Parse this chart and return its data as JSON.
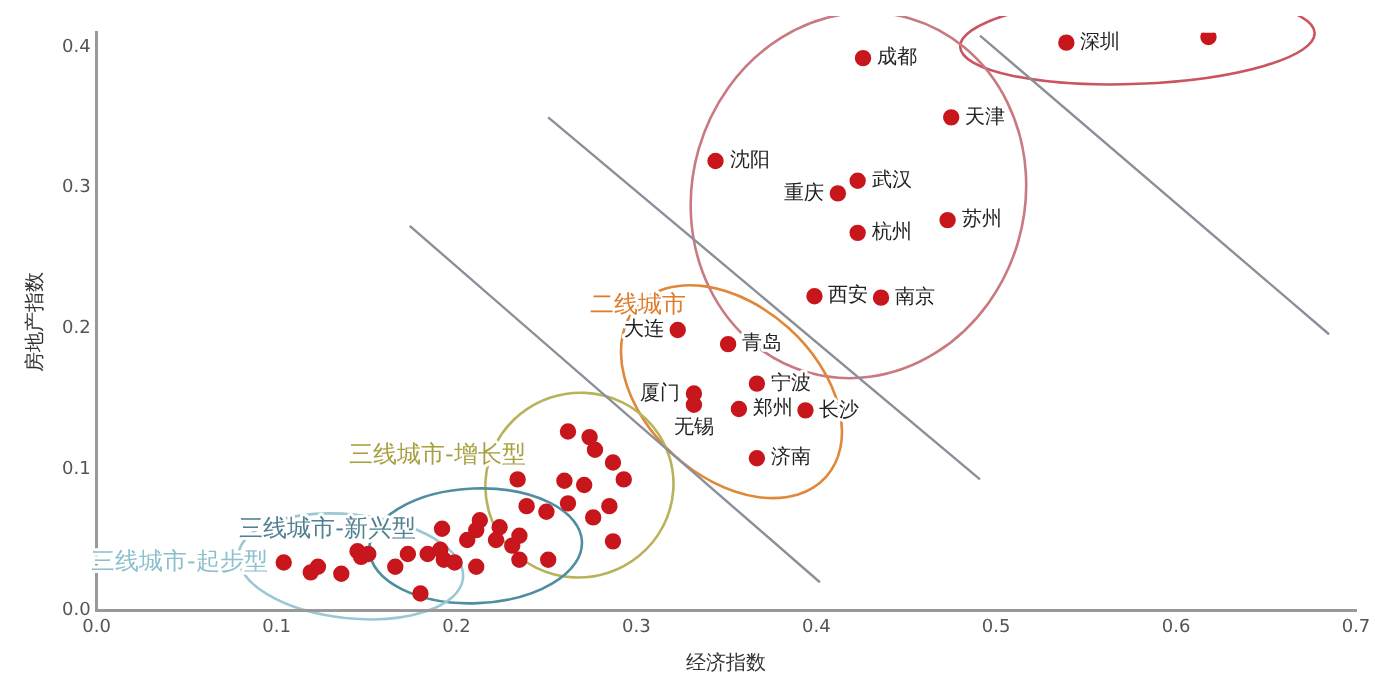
{
  "chart_data": {
    "type": "scatter",
    "xlabel": "经济指数",
    "ylabel": "房地产指数",
    "marker": "circle",
    "xlim": [
      0,
      0.7
    ],
    "xticks": [
      {
        "value": 0,
        "label": "0.0"
      },
      {
        "value": 0.1,
        "label": "0.1"
      },
      {
        "value": 0.2,
        "label": "0.2"
      },
      {
        "value": 0.3,
        "label": "0.3"
      },
      {
        "value": 0.4,
        "label": "0.4"
      },
      {
        "value": 0.5,
        "label": "0.5"
      },
      {
        "value": 0.6,
        "label": "0.6"
      },
      {
        "value": 0.7,
        "label": "0.7"
      }
    ],
    "ylim": [
      0,
      0.41
    ],
    "yticks": [
      {
        "value": 0,
        "label": "0.0"
      },
      {
        "value": 0.1,
        "label": "0.1"
      },
      {
        "value": 0.2,
        "label": "0.2"
      },
      {
        "value": 0.3,
        "label": "0.3"
      },
      {
        "value": 0.4,
        "label": "0.4"
      }
    ],
    "series": [
      {
        "color": "#c8161d",
        "x": [
          0.539,
          0.618
        ],
        "values": [
          0.403,
          0.407
        ]
      },
      {
        "color": "#c8161d",
        "x": [
          0.426,
          0.475,
          0.344,
          0.423,
          0.412,
          0.473,
          0.423,
          0.399,
          0.436
        ],
        "values": [
          0.392,
          0.35,
          0.319,
          0.305,
          0.296,
          0.277,
          0.268,
          0.223,
          0.222
        ]
      },
      {
        "name": "二线城市",
        "color": "#c8161d",
        "x": [
          0.323,
          0.351,
          0.367,
          0.332,
          0.332,
          0.357,
          0.394,
          0.367
        ],
        "values": [
          0.199,
          0.189,
          0.161,
          0.154,
          0.146,
          0.143,
          0.142,
          0.108
        ]
      },
      {
        "name": "三线城市-增长型",
        "color": "#c8161d",
        "x": [
          0.262,
          0.274,
          0.277,
          0.287,
          0.293,
          0.234,
          0.26,
          0.271,
          0.239,
          0.25,
          0.262,
          0.285,
          0.276,
          0.287
        ],
        "values": [
          0.127,
          0.123,
          0.114,
          0.105,
          0.093,
          0.093,
          0.092,
          0.089,
          0.074,
          0.07,
          0.076,
          0.074,
          0.066,
          0.049
        ]
      },
      {
        "name": "三线城市-新兴型",
        "color": "#c8161d",
        "x": [
          0.192,
          0.213,
          0.211,
          0.206,
          0.224,
          0.222,
          0.235,
          0.231,
          0.235,
          0.251,
          0.191,
          0.184,
          0.193,
          0.199,
          0.211,
          0.173
        ],
        "values": [
          0.058,
          0.064,
          0.057,
          0.05,
          0.059,
          0.05,
          0.053,
          0.046,
          0.036,
          0.036,
          0.043,
          0.04,
          0.036,
          0.034,
          0.031,
          0.04
        ]
      },
      {
        "name": "三线城市-起步型",
        "color": "#c8161d",
        "x": [
          0.104,
          0.119,
          0.123,
          0.136,
          0.145,
          0.147,
          0.151,
          0.166,
          0.18
        ],
        "values": [
          0.034,
          0.027,
          0.031,
          0.026,
          0.042,
          0.038,
          0.04,
          0.031,
          0.012
        ]
      },
      {
        "type": "line",
        "marker": "none",
        "color": "#8a8f99",
        "x": [
          0.174,
          0.402
        ],
        "values": [
          0.273,
          0.02
        ]
      },
      {
        "type": "line",
        "marker": "none",
        "color": "#8a8f99",
        "x": [
          0.251,
          0.491
        ],
        "values": [
          0.35,
          0.093
        ]
      },
      {
        "type": "line",
        "marker": "none",
        "color": "#8a8f99",
        "x": [
          0.491,
          0.685
        ],
        "values": [
          0.408,
          0.196
        ]
      }
    ],
    "annotations": [
      {
        "text": "深圳",
        "x": 0.539,
        "y": 0.403
      },
      {
        "text": "成都",
        "x": 0.426,
        "y": 0.392
      },
      {
        "text": "天津",
        "x": 0.475,
        "y": 0.35
      },
      {
        "text": "沈阳",
        "x": 0.344,
        "y": 0.319
      },
      {
        "text": "武汉",
        "x": 0.423,
        "y": 0.305
      },
      {
        "text": "重庆",
        "x": 0.412,
        "y": 0.296
      },
      {
        "text": "苏州",
        "x": 0.473,
        "y": 0.277
      },
      {
        "text": "杭州",
        "x": 0.423,
        "y": 0.268
      },
      {
        "text": "西安",
        "x": 0.399,
        "y": 0.223
      },
      {
        "text": "南京",
        "x": 0.436,
        "y": 0.222
      },
      {
        "text": "大连",
        "x": 0.323,
        "y": 0.199
      },
      {
        "text": "青岛",
        "x": 0.351,
        "y": 0.189
      },
      {
        "text": "宁波",
        "x": 0.367,
        "y": 0.161
      },
      {
        "text": "厦门",
        "x": 0.332,
        "y": 0.154
      },
      {
        "text": "无锡",
        "x": 0.332,
        "y": 0.146
      },
      {
        "text": "郑州",
        "x": 0.357,
        "y": 0.143
      },
      {
        "text": "长沙",
        "x": 0.394,
        "y": 0.142
      },
      {
        "text": "济南",
        "x": 0.367,
        "y": 0.108
      }
    ]
  }
}
